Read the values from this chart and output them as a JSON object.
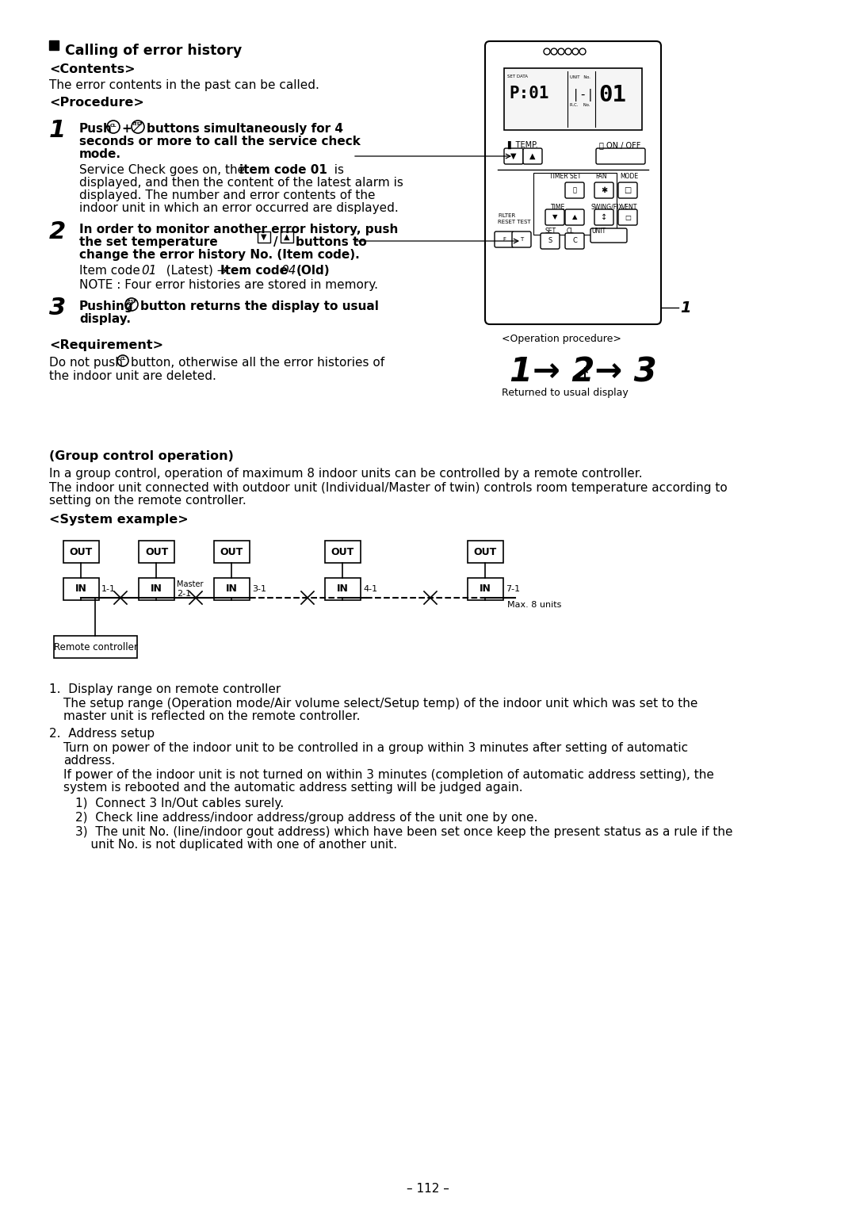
{
  "bg_color": "#ffffff",
  "text_color": "#000000",
  "title": "Calling of error history",
  "contents_header": "<Contents>",
  "contents_body": "The error contents in the past can be called.",
  "procedure_header": "<Procedure>",
  "req_header": "<Requirement>",
  "req_body1": "Do not push  button, otherwise all the error histories of",
  "req_body2": "the indoor unit are deleted.",
  "group_header": "(Group control operation)",
  "group_body1": "In a group control, operation of maximum 8 indoor units can be controlled by a remote controller.",
  "group_body2": "The indoor unit connected with outdoor unit (Individual/Master of twin) controls room temperature according to",
  "group_body3": "setting on the remote controller.",
  "system_header": "<System example>",
  "op_proc": "<Operation procedure>",
  "returned": "Returned to usual display",
  "footer": "– 112 –",
  "fn1_head": "1.  Display range on remote controller",
  "fn1_body1": "The setup range (Operation mode/Air volume select/Setup temp) of the indoor unit which was set to the",
  "fn1_body2": "master unit is reflected on the remote controller.",
  "fn2_head": "2.  Address setup",
  "fn2_body1": "Turn on power of the indoor unit to be controlled in a group within 3 minutes after setting of automatic",
  "fn2_body2": "address.",
  "fn2_body3": "If power of the indoor unit is not turned on within 3 minutes (completion of automatic address setting), the",
  "fn2_body4": "system is rebooted and the automatic address setting will be judged again.",
  "fn2_sub1": "1)  Connect 3 In/Out cables surely.",
  "fn2_sub2": "2)  Check line address/indoor address/group address of the unit one by one.",
  "fn2_sub3": "3)  The unit No. (line/indoor gout address) which have been set once keep the present status as a rule if the",
  "fn2_sub4": "    unit No. is not duplicated with one of another unit."
}
